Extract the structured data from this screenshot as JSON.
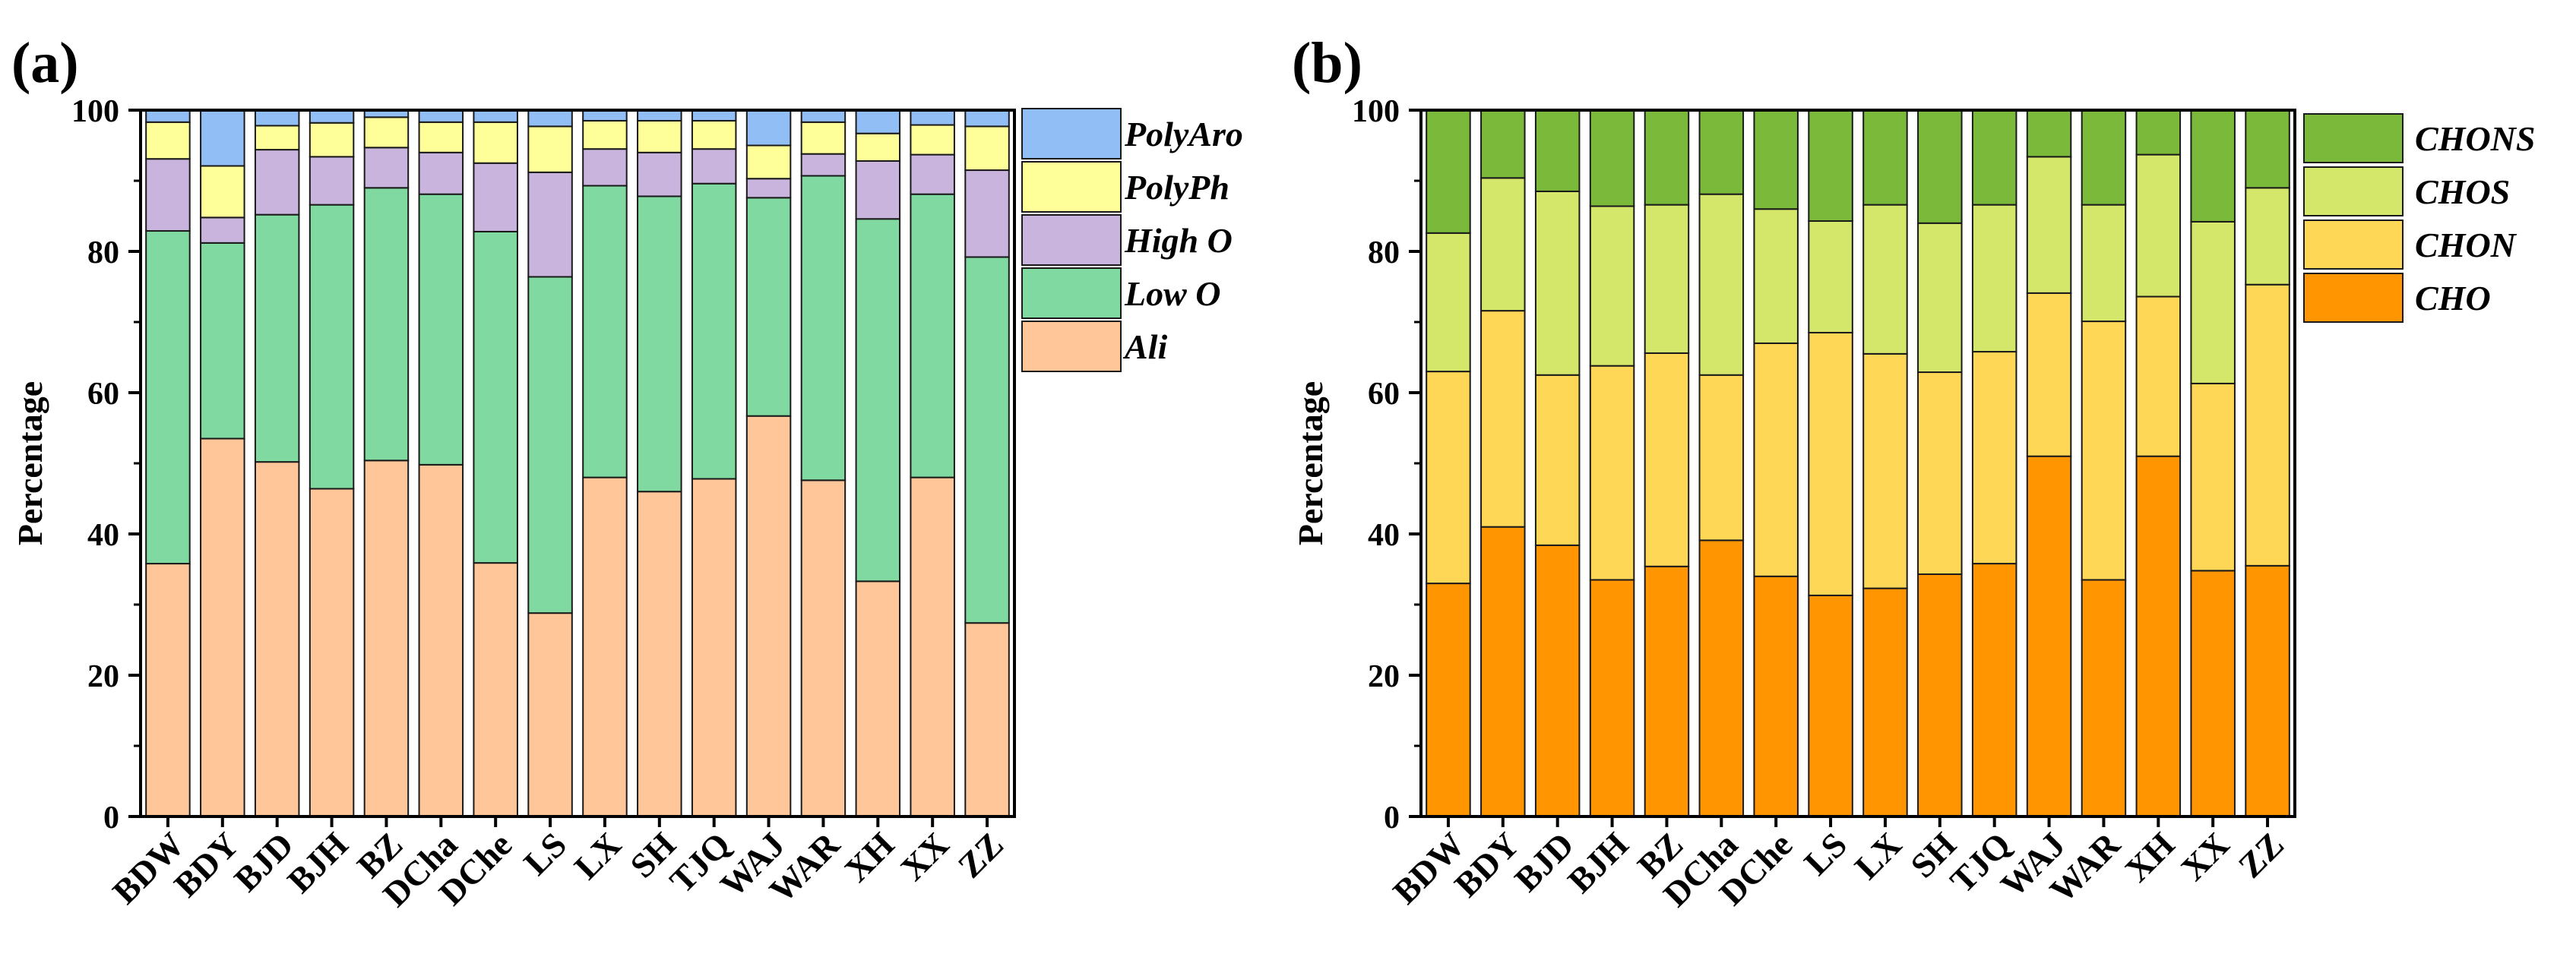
{
  "chart_data": [
    {
      "type": "bar",
      "stacked": true,
      "panel_label": "(a)",
      "title": "",
      "xlabel": "",
      "ylabel": "Percentage",
      "ylim": [
        0,
        100
      ],
      "yticks": [
        "0",
        "20",
        "40",
        "60",
        "80",
        "100"
      ],
      "categories": [
        "BDW",
        "BDY",
        "BJD",
        "BJH",
        "BZ",
        "DCha",
        "DChe",
        "LS",
        "LX",
        "SH",
        "TJQ",
        "WAJ",
        "WAR",
        "XH",
        "XX",
        "ZZ"
      ],
      "legend_position": "right",
      "colors": [
        "#FFC699",
        "#80D9A0",
        "#C8B4DC",
        "#FFFF9A",
        "#91BEF5"
      ],
      "series": [
        {
          "name": "Ali",
          "values": [
            35.8,
            53.5,
            50.2,
            46.4,
            50.4,
            49.8,
            35.9,
            28.8,
            48.0,
            46.0,
            47.8,
            56.7,
            47.6,
            33.3,
            48.0,
            27.4
          ]
        },
        {
          "name": "Low O",
          "values": [
            47.1,
            27.7,
            35.0,
            40.2,
            38.6,
            38.3,
            46.9,
            47.6,
            41.3,
            41.8,
            41.8,
            30.9,
            43.1,
            51.3,
            40.1,
            51.8
          ]
        },
        {
          "name": "High O",
          "values": [
            10.2,
            3.6,
            9.2,
            6.8,
            5.7,
            5.9,
            9.7,
            14.8,
            5.2,
            6.2,
            4.9,
            2.7,
            3.1,
            8.2,
            5.6,
            12.3
          ]
        },
        {
          "name": "PolyPh",
          "values": [
            5.2,
            7.3,
            3.4,
            4.8,
            4.3,
            4.3,
            5.8,
            6.5,
            4.0,
            4.5,
            4.0,
            4.7,
            4.5,
            3.9,
            4.2,
            6.2
          ]
        },
        {
          "name": "PolyAro",
          "values": [
            1.7,
            7.9,
            2.2,
            1.8,
            1.0,
            1.7,
            1.7,
            2.3,
            1.5,
            1.5,
            1.5,
            5.0,
            1.7,
            3.3,
            2.1,
            2.3
          ]
        }
      ]
    },
    {
      "type": "bar",
      "stacked": true,
      "panel_label": "(b)",
      "title": "",
      "xlabel": "",
      "ylabel": "Percentage",
      "ylim": [
        0,
        100
      ],
      "yticks": [
        "0",
        "20",
        "40",
        "60",
        "80",
        "100"
      ],
      "categories": [
        "BDW",
        "BDY",
        "BJD",
        "BJH",
        "BZ",
        "DCha",
        "DChe",
        "LS",
        "LX",
        "SH",
        "TJQ",
        "WAJ",
        "WAR",
        "XH",
        "XX",
        "ZZ"
      ],
      "legend_position": "right",
      "colors": [
        "#FF9500",
        "#FFD756",
        "#D4E76A",
        "#7AB93A"
      ],
      "series": [
        {
          "name": "CHO",
          "values": [
            33.0,
            41.0,
            38.4,
            33.5,
            35.4,
            39.1,
            34.0,
            31.3,
            32.3,
            34.3,
            35.8,
            51.0,
            33.5,
            51.0,
            34.8,
            35.5
          ]
        },
        {
          "name": "CHON",
          "values": [
            30.0,
            30.6,
            24.1,
            30.3,
            30.2,
            23.4,
            33.0,
            37.2,
            33.2,
            28.6,
            30.0,
            23.1,
            36.6,
            22.6,
            26.5,
            39.8
          ]
        },
        {
          "name": "CHOS",
          "values": [
            19.6,
            18.8,
            26.0,
            22.6,
            21.0,
            25.6,
            19.0,
            15.8,
            21.1,
            21.1,
            20.8,
            19.3,
            16.5,
            20.1,
            22.9,
            13.7
          ]
        },
        {
          "name": "CHONS",
          "values": [
            17.4,
            9.6,
            11.5,
            13.6,
            13.4,
            11.9,
            14.0,
            15.7,
            13.4,
            16.0,
            13.4,
            6.6,
            13.4,
            6.3,
            15.8,
            11.0
          ]
        }
      ]
    }
  ]
}
